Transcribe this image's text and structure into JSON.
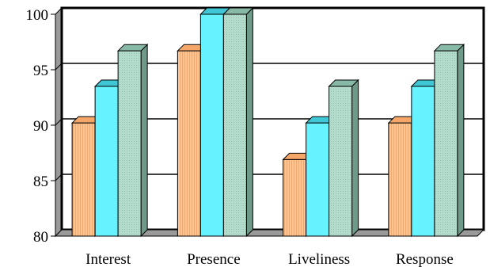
{
  "chart_data": {
    "type": "bar",
    "categories": [
      "Interest",
      "Presence",
      "Liveliness",
      "Response"
    ],
    "series": [
      {
        "values": [
          90.2,
          96.7,
          86.9,
          90.2
        ],
        "color": "#ffbf8a",
        "pattern": "vertical-stripes"
      },
      {
        "values": [
          93.5,
          100,
          90.2,
          93.5
        ],
        "color": "#66f2ff",
        "pattern": "solid"
      },
      {
        "values": [
          96.7,
          100,
          93.5,
          96.7
        ],
        "color": "#a8d3c4",
        "pattern": "dotted"
      }
    ],
    "y_ticks": [
      "80",
      "85",
      "90",
      "95",
      "100"
    ],
    "ylim": [
      80,
      100
    ],
    "grid": true,
    "legend": "none",
    "style": "3d-clustered-bar"
  }
}
